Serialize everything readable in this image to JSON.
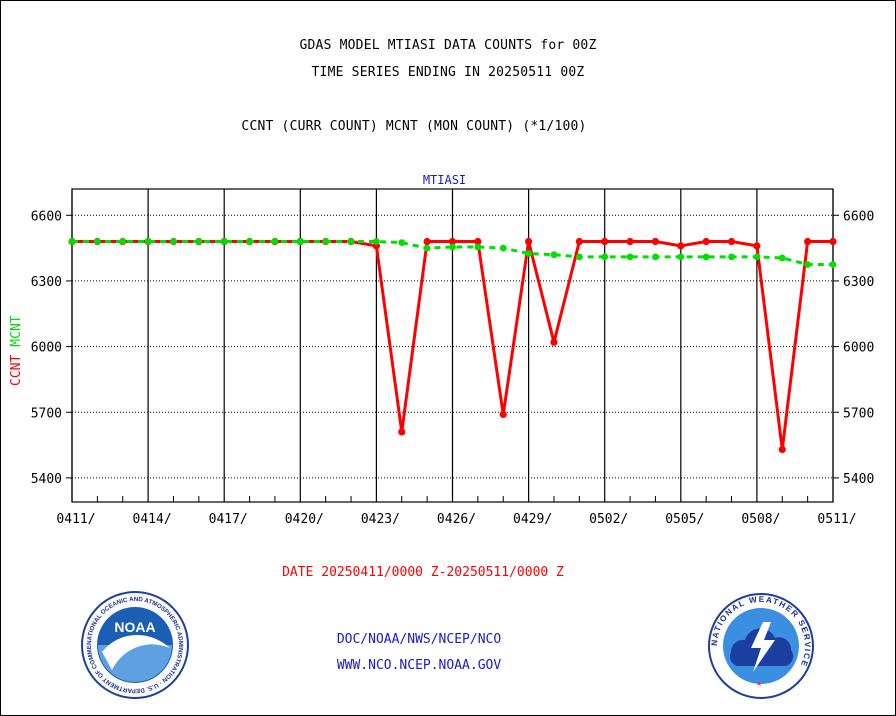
{
  "header": {
    "title_line1": "GDAS MODEL MTIASI DATA COUNTS for 00Z",
    "title_line2": "TIME SERIES ENDING IN 20250511 00Z",
    "title_line3": "CCNT (CURR COUNT) MCNT (MON COUNT) (*1/100)"
  },
  "footer": {
    "date_range": "DATE 20250411/0000 Z-20250511/0000 Z",
    "credit_line1": "DOC/NOAA/NWS/NCEP/NCO",
    "credit_line2": "WWW.NCO.NCEP.NOAA.GOV"
  },
  "logos": {
    "noaa_text": "NOAA",
    "noaa_ring_text": "NATIONAL OCEANIC AND ATMOSPHERIC ADMINISTRATION · U.S. DEPARTMENT OF COMMERCE",
    "nws_ring_text": "NATIONAL WEATHER SERVICE"
  },
  "chart_data": {
    "type": "line",
    "title": "MTIASI",
    "xlabel": "",
    "ylabel_ccnt": "CCNT",
    "ylabel_mcnt": "MCNT",
    "x": [
      "0411",
      "0412",
      "0413",
      "0414",
      "0415",
      "0416",
      "0417",
      "0418",
      "0419",
      "0420",
      "0421",
      "0422",
      "0423",
      "0424",
      "0425",
      "0426",
      "0427",
      "0428",
      "0429",
      "0430",
      "0501",
      "0502",
      "0503",
      "0504",
      "0505",
      "0506",
      "0507",
      "0508",
      "0509",
      "0510",
      "0511"
    ],
    "x_tick_labels": [
      "0411/",
      "0414/",
      "0417/",
      "0420/",
      "0423/",
      "0426/",
      "0429/",
      "0502/",
      "0505/",
      "0508/",
      "0511/"
    ],
    "y_tick_labels": [
      "6600",
      "6300",
      "6000",
      "5700",
      "5400"
    ],
    "y_ticks": [
      6600,
      6300,
      6000,
      5700,
      5400
    ],
    "ylim": [
      5290,
      6720
    ],
    "grid": true,
    "series": [
      {
        "name": "CCNT",
        "color": "#ff0000",
        "style": "solid",
        "values": [
          6480,
          6480,
          6480,
          6480,
          6480,
          6480,
          6480,
          6480,
          6480,
          6480,
          6480,
          6480,
          6460,
          5610,
          6480,
          6480,
          6480,
          5690,
          6480,
          6020,
          6480,
          6480,
          6480,
          6480,
          6460,
          6480,
          6480,
          6460,
          5530,
          6480,
          6480
        ]
      },
      {
        "name": "MCNT",
        "color": "#00e000",
        "style": "dashed",
        "values": [
          6480,
          6480,
          6480,
          6480,
          6480,
          6480,
          6480,
          6480,
          6480,
          6480,
          6480,
          6480,
          6480,
          6475,
          6450,
          6455,
          6455,
          6450,
          6425,
          6420,
          6410,
          6410,
          6410,
          6410,
          6410,
          6410,
          6410,
          6410,
          6405,
          6375,
          6375
        ]
      }
    ]
  }
}
